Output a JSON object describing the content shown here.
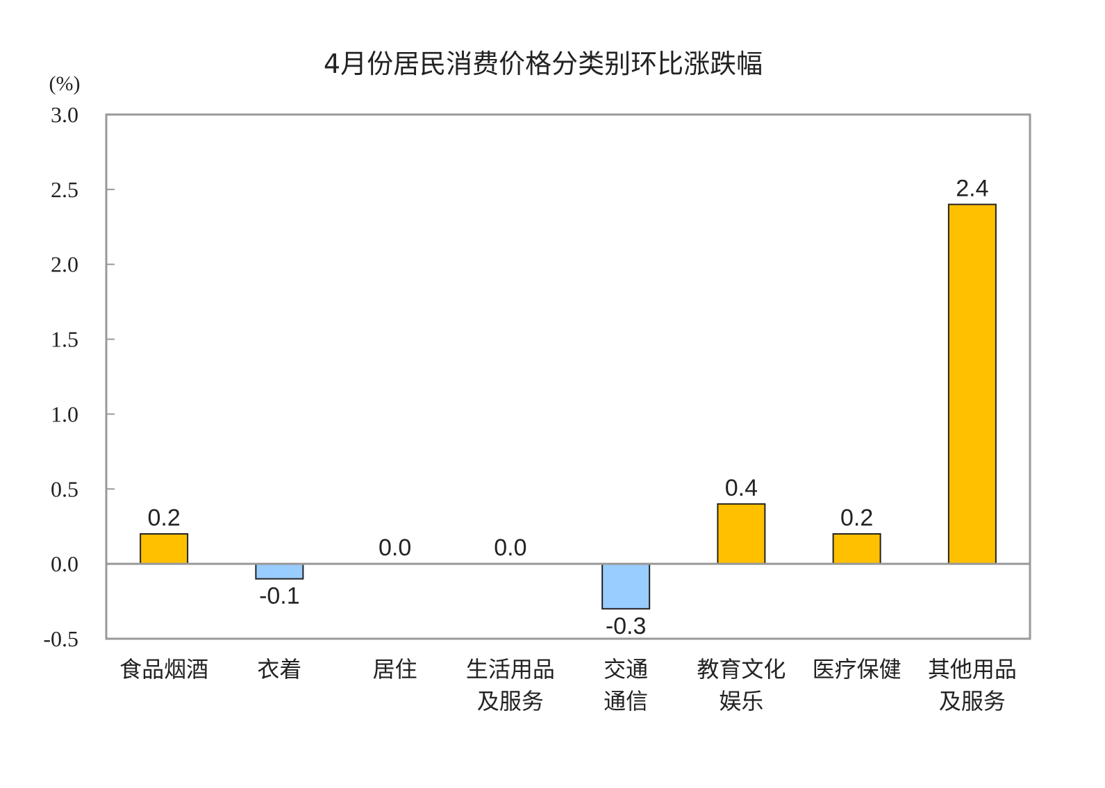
{
  "chart_data": {
    "type": "bar",
    "title": "4月份居民消费价格分类别环比涨跌幅",
    "ylabel": "(%)",
    "categories": [
      [
        "食品烟酒"
      ],
      [
        "衣着"
      ],
      [
        "居住"
      ],
      [
        "生活用品",
        "及服务"
      ],
      [
        "交通",
        "通信"
      ],
      [
        "教育文化",
        "娱乐"
      ],
      [
        "医疗保健"
      ],
      [
        "其他用品",
        "及服务"
      ]
    ],
    "values": [
      0.2,
      -0.1,
      0.0,
      0.0,
      -0.3,
      0.4,
      0.2,
      2.4
    ],
    "data_labels": [
      "0.2",
      "-0.1",
      "0.0",
      "0.0",
      "-0.3",
      "0.4",
      "0.2",
      "2.4"
    ],
    "ylim": [
      -0.5,
      3.0
    ],
    "yticks": [
      "3.0",
      "2.5",
      "2.0",
      "1.5",
      "1.0",
      "0.5",
      "0.0",
      "-0.5"
    ],
    "grid": false,
    "colors": {
      "positive": "#FFC000",
      "negative": "#99CCFF",
      "frame": "#999999"
    }
  }
}
